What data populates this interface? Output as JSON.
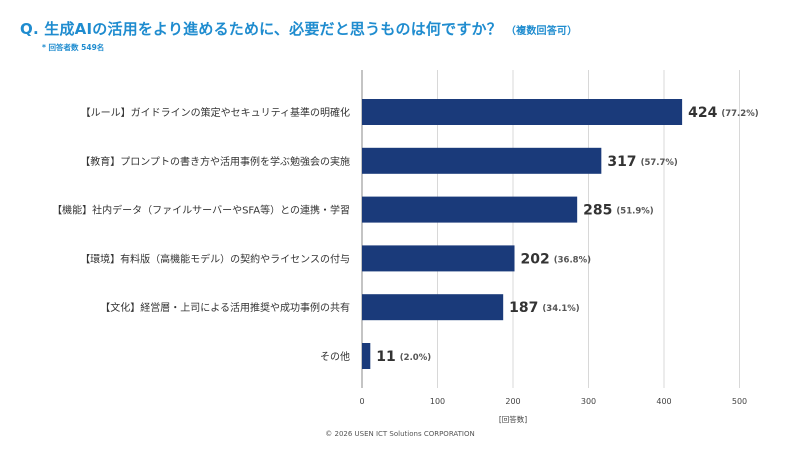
{
  "header": {
    "title": "Q. 生成AIの活用をより進めるために、必要だと思うものは何ですか？",
    "note": "（複数回答可）",
    "respondents": "* 回答者数 549名"
  },
  "footer": {
    "copyright": "© 2026 USEN ICT Solutions CORPORATION"
  },
  "chart_data": {
    "type": "bar",
    "orientation": "horizontal",
    "categories": [
      "【ルール】ガイドラインの策定やセキュリティ基準の明確化",
      "【教育】プロンプトの書き方や活用事例を学ぶ勉強会の実施",
      "【機能】社内データ（ファイルサーバーやSFA等）との連携・学習",
      "【環境】有料版（高機能モデル）の契約やライセンスの付与",
      "【文化】経営層・上司による活用推奨や成功事例の共有",
      "その他"
    ],
    "values": [
      424,
      317,
      285,
      202,
      187,
      11
    ],
    "percent_labels": [
      "(77.2%)",
      "(57.7%)",
      "(51.9%)",
      "(36.8%)",
      "(34.1%)",
      "(2.0%)"
    ],
    "xlim": [
      0,
      500
    ],
    "xticks": [
      0,
      100,
      200,
      300,
      400,
      500
    ],
    "xlabel": "[回答数]",
    "grid": true,
    "bar_color": "#1a3a7a",
    "accent_color": "#1f8ccf"
  }
}
